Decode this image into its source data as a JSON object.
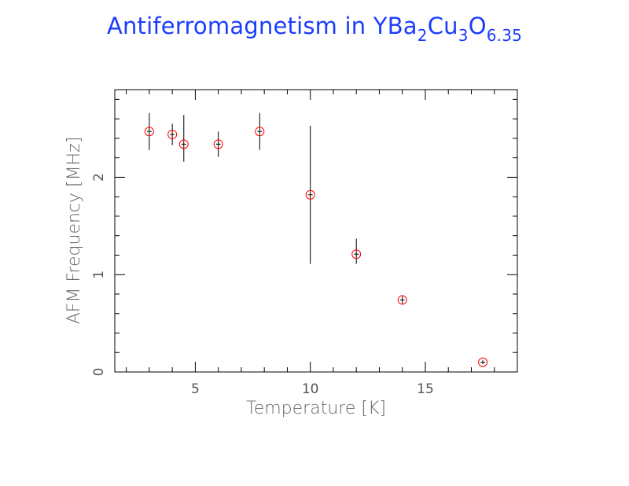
{
  "title": {
    "main": "Antiferromagnetism in YBa",
    "sub1": "2",
    "mid1": "Cu",
    "sub2": "3",
    "mid2": "O",
    "sub3": "6.35"
  },
  "chart_data": {
    "type": "scatter",
    "xlabel": "Temperature [K]",
    "ylabel": "AFM Frequency [MHz]",
    "xlim": [
      1.5,
      19
    ],
    "ylim": [
      0,
      2.9
    ],
    "xticks": [
      5,
      10,
      15
    ],
    "yticks": [
      0,
      1,
      2
    ],
    "grid": false,
    "series": [
      {
        "marker": "open-circle",
        "marker_color": "#ff0000",
        "errorbar_color": "#000000",
        "points": [
          {
            "x": 3.0,
            "y": 2.47,
            "yerr_low": 0.19,
            "yerr_high": 0.19
          },
          {
            "x": 4.0,
            "y": 2.44,
            "yerr_low": 0.11,
            "yerr_high": 0.11
          },
          {
            "x": 4.5,
            "y": 2.34,
            "yerr_low": 0.18,
            "yerr_high": 0.3
          },
          {
            "x": 6.0,
            "y": 2.34,
            "yerr_low": 0.13,
            "yerr_high": 0.13
          },
          {
            "x": 7.8,
            "y": 2.47,
            "yerr_low": 0.19,
            "yerr_high": 0.19
          },
          {
            "x": 10.0,
            "y": 1.82,
            "yerr_low": 0.71,
            "yerr_high": 0.71
          },
          {
            "x": 12.0,
            "y": 1.21,
            "yerr_low": 0.1,
            "yerr_high": 0.16
          },
          {
            "x": 14.0,
            "y": 0.74,
            "yerr_low": 0.04,
            "yerr_high": 0.04
          },
          {
            "x": 17.5,
            "y": 0.1,
            "yerr_low": 0.02,
            "yerr_high": 0.02
          }
        ]
      }
    ]
  }
}
